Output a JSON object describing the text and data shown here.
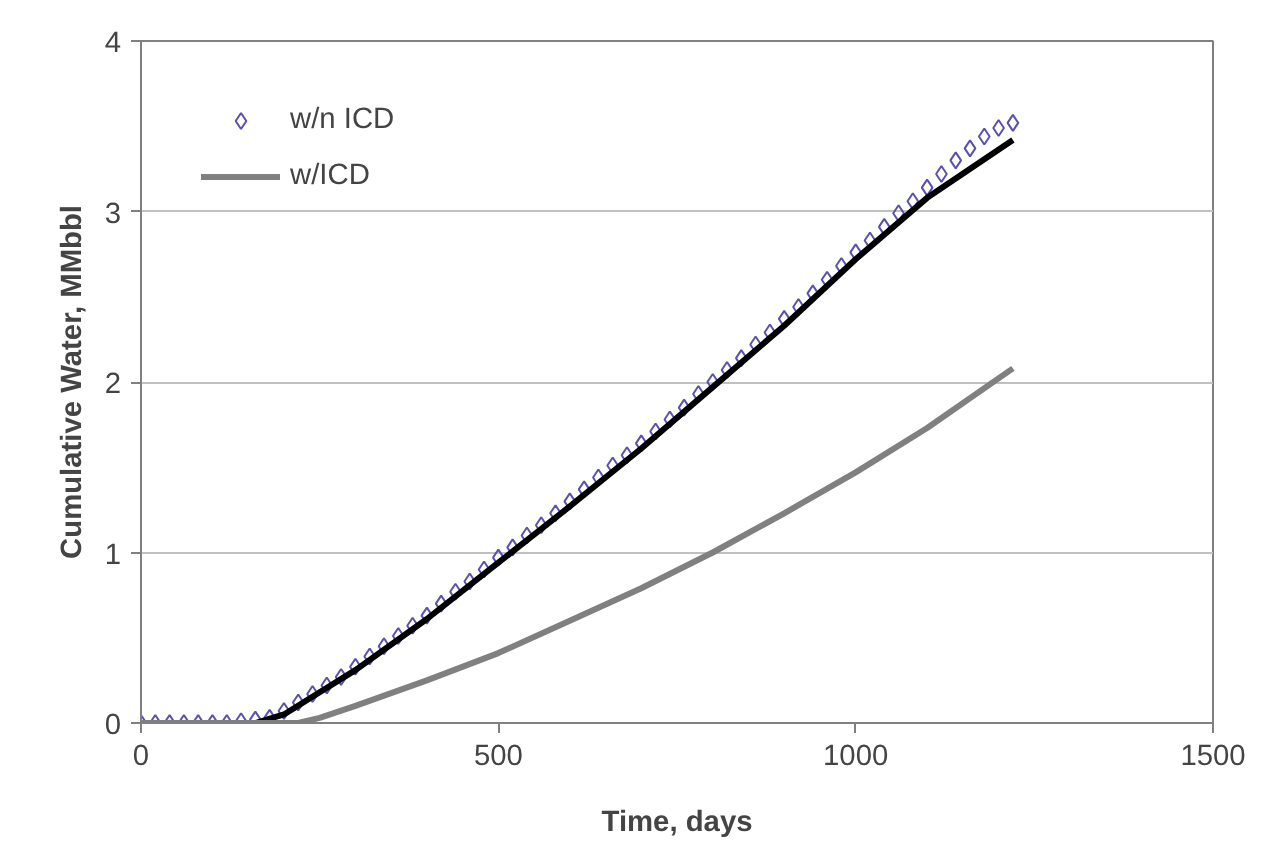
{
  "chart_data": {
    "type": "line",
    "xlabel": "Time, days",
    "ylabel": "Cumulative Water, MMbbl",
    "xlim": [
      0,
      1500
    ],
    "ylim": [
      0,
      4
    ],
    "xticks": [
      0,
      500,
      1000,
      1500
    ],
    "yticks": [
      0,
      1,
      2,
      3,
      4
    ],
    "grid": "y",
    "legend": "top left",
    "series": [
      {
        "name": "w/n ICD",
        "type": "scatter",
        "marker": "diamond",
        "color": "#5a50b0",
        "x": [
          0,
          20,
          40,
          60,
          80,
          100,
          120,
          140,
          160,
          180,
          200,
          220,
          240,
          260,
          280,
          300,
          320,
          340,
          360,
          380,
          400,
          420,
          440,
          460,
          480,
          500,
          520,
          540,
          560,
          580,
          600,
          620,
          640,
          660,
          680,
          700,
          720,
          740,
          760,
          780,
          800,
          820,
          840,
          860,
          880,
          900,
          920,
          940,
          960,
          980,
          1000,
          1020,
          1040,
          1060,
          1080,
          1100,
          1120,
          1140,
          1160,
          1180,
          1200,
          1220
        ],
        "values": [
          0,
          0,
          0,
          0,
          0,
          0,
          0,
          0.01,
          0.02,
          0.03,
          0.07,
          0.12,
          0.17,
          0.22,
          0.27,
          0.33,
          0.39,
          0.45,
          0.51,
          0.57,
          0.63,
          0.7,
          0.77,
          0.83,
          0.9,
          0.97,
          1.03,
          1.1,
          1.16,
          1.23,
          1.3,
          1.37,
          1.44,
          1.51,
          1.57,
          1.64,
          1.71,
          1.78,
          1.85,
          1.93,
          2.0,
          2.07,
          2.14,
          2.22,
          2.29,
          2.37,
          2.44,
          2.52,
          2.6,
          2.68,
          2.76,
          2.83,
          2.91,
          2.99,
          3.06,
          3.14,
          3.22,
          3.3,
          3.37,
          3.44,
          3.49,
          3.52
        ]
      },
      {
        "color": "#000000",
        "x": [
          0,
          160,
          200,
          250,
          300,
          400,
          500,
          600,
          700,
          800,
          900,
          1000,
          1100,
          1220
        ],
        "values": [
          0,
          0,
          0.05,
          0.18,
          0.31,
          0.61,
          0.94,
          1.27,
          1.61,
          1.97,
          2.33,
          2.72,
          3.08,
          3.42
        ]
      },
      {
        "name": "w/ICD",
        "color": "#808080",
        "x": [
          0,
          220,
          250,
          300,
          400,
          500,
          600,
          700,
          800,
          900,
          1000,
          1100,
          1220
        ],
        "values": [
          0,
          0,
          0.03,
          0.1,
          0.25,
          0.41,
          0.6,
          0.79,
          1.0,
          1.23,
          1.47,
          1.73,
          2.08
        ]
      }
    ]
  }
}
